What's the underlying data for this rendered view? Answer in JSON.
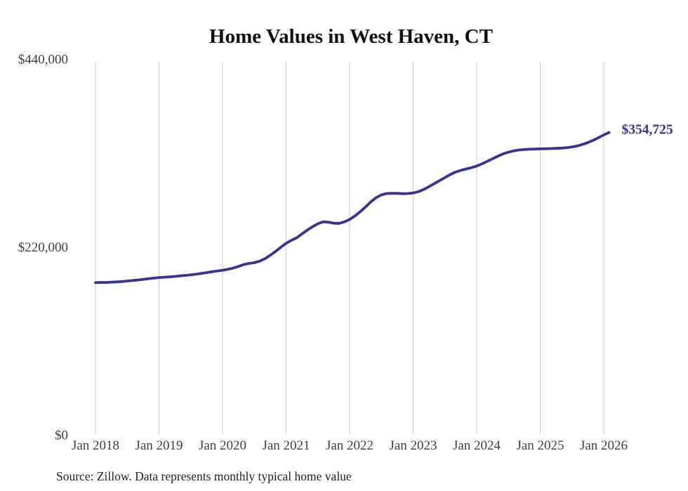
{
  "title": "Home Values in West Haven, CT",
  "source_note": "Source: Zillow. Data represents monthly typical home value",
  "end_label": "$354,725",
  "colors": {
    "line": "#3a3292",
    "end_label": "#3a3292",
    "grid": "#c9c9c9",
    "axis_text": "#3f3f3f",
    "title_text": "#111111",
    "source_text": "#222222",
    "background": "#ffffff"
  },
  "chart_data": {
    "type": "line",
    "title": "Home Values in West Haven, CT",
    "xlabel": "",
    "ylabel": "",
    "ylim": [
      0,
      440000
    ],
    "grid": "vertical-only",
    "legend": "none",
    "y_ticks": [
      {
        "value": 0,
        "label": "$0"
      },
      {
        "value": 220000,
        "label": "$220,000"
      },
      {
        "value": 440000,
        "label": "$440,000"
      }
    ],
    "x_ticks": [
      {
        "index": 0,
        "label": "Jan 2018"
      },
      {
        "index": 12,
        "label": "Jan 2019"
      },
      {
        "index": 24,
        "label": "Jan 2020"
      },
      {
        "index": 36,
        "label": "Jan 2021"
      },
      {
        "index": 48,
        "label": "Jan 2022"
      },
      {
        "index": 60,
        "label": "Jan 2023"
      },
      {
        "index": 72,
        "label": "Jan 2024"
      },
      {
        "index": 84,
        "label": "Jan 2025"
      },
      {
        "index": 96,
        "label": "Jan 2026"
      }
    ],
    "series": [
      {
        "name": "Monthly typical home value",
        "final_value": 354725,
        "months": [
          "2018-01",
          "2018-02",
          "2018-03",
          "2018-04",
          "2018-05",
          "2018-06",
          "2018-07",
          "2018-08",
          "2018-09",
          "2018-10",
          "2018-11",
          "2018-12",
          "2019-01",
          "2019-02",
          "2019-03",
          "2019-04",
          "2019-05",
          "2019-06",
          "2019-07",
          "2019-08",
          "2019-09",
          "2019-10",
          "2019-11",
          "2019-12",
          "2020-01",
          "2020-02",
          "2020-03",
          "2020-04",
          "2020-05",
          "2020-06",
          "2020-07",
          "2020-08",
          "2020-09",
          "2020-10",
          "2020-11",
          "2020-12",
          "2021-01",
          "2021-02",
          "2021-03",
          "2021-04",
          "2021-05",
          "2021-06",
          "2021-07",
          "2021-08",
          "2021-09",
          "2021-10",
          "2021-11",
          "2021-12",
          "2022-01",
          "2022-02",
          "2022-03",
          "2022-04",
          "2022-05",
          "2022-06",
          "2022-07",
          "2022-08",
          "2022-09",
          "2022-10",
          "2022-11",
          "2022-12",
          "2023-01",
          "2023-02",
          "2023-03",
          "2023-04",
          "2023-05",
          "2023-06",
          "2023-07",
          "2023-08",
          "2023-09",
          "2023-10",
          "2023-11",
          "2023-12",
          "2024-01",
          "2024-02",
          "2024-03",
          "2024-04",
          "2024-05",
          "2024-06",
          "2024-07",
          "2024-08",
          "2024-09",
          "2024-10",
          "2024-11",
          "2024-12",
          "2025-01",
          "2025-02",
          "2025-03",
          "2025-04",
          "2025-05",
          "2025-06",
          "2025-07",
          "2025-08",
          "2025-09",
          "2025-10",
          "2025-11",
          "2025-12",
          "2026-01",
          "2026-02"
        ],
        "values": [
          179000,
          179300,
          179200,
          179500,
          179900,
          180300,
          180900,
          181500,
          182100,
          182800,
          183600,
          184300,
          185000,
          185400,
          185800,
          186300,
          186900,
          187500,
          188100,
          188800,
          189700,
          190700,
          191700,
          192600,
          193500,
          194600,
          196000,
          198000,
          200200,
          201500,
          202300,
          204100,
          207000,
          211000,
          215500,
          220400,
          225000,
          228500,
          231500,
          236000,
          240500,
          244500,
          248000,
          250300,
          249800,
          248600,
          248300,
          250200,
          253000,
          257000,
          262000,
          267500,
          273500,
          278500,
          281800,
          283300,
          283600,
          283500,
          283200,
          283300,
          284000,
          285500,
          288000,
          291500,
          295000,
          298500,
          302000,
          305500,
          308500,
          310500,
          312000,
          313600,
          315500,
          318000,
          321000,
          324000,
          327000,
          329800,
          331800,
          333300,
          334300,
          334900,
          335200,
          335400,
          335600,
          335800,
          336000,
          336200,
          336500,
          337000,
          337800,
          339000,
          340800,
          343000,
          345600,
          348700,
          352000,
          354725
        ]
      }
    ]
  }
}
